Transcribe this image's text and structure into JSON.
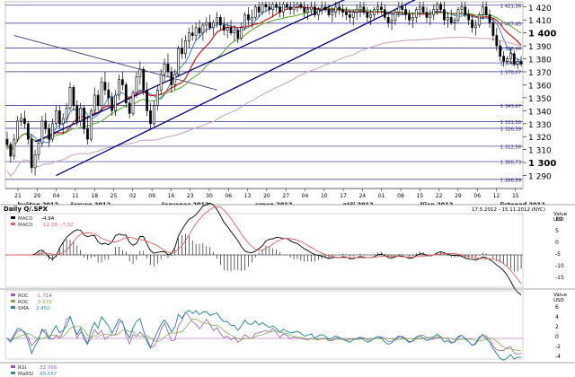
{
  "chart_data": [
    {
      "type": "candlestick",
      "title": "",
      "y_axis": {
        "ylim": [
          1280,
          1424
        ],
        "ticks": [
          {
            "v": 1290,
            "label": "1 290",
            "bold": false
          },
          {
            "v": 1300,
            "label": "1 300",
            "bold": true
          },
          {
            "v": 1310,
            "label": "1 310",
            "bold": false
          },
          {
            "v": 1320,
            "label": "1 320",
            "bold": false
          },
          {
            "v": 1330,
            "label": "1 330",
            "bold": false
          },
          {
            "v": 1340,
            "label": "1 340",
            "bold": false
          },
          {
            "v": 1350,
            "label": "1 350",
            "bold": false
          },
          {
            "v": 1360,
            "label": "1 360",
            "bold": false
          },
          {
            "v": 1370,
            "label": "1 370",
            "bold": false
          },
          {
            "v": 1380,
            "label": "1 380",
            "bold": false
          },
          {
            "v": 1390,
            "label": "1 390",
            "bold": false
          },
          {
            "v": 1400,
            "label": "1 400",
            "bold": true
          },
          {
            "v": 1410,
            "label": "1 410",
            "bold": false
          },
          {
            "v": 1420,
            "label": "1 420",
            "bold": false
          }
        ]
      },
      "levels": [
        {
          "v": 1421.36,
          "label": "1 421,36"
        },
        {
          "v": 1407.45,
          "label": "1 407,45"
        },
        {
          "v": 1388.44,
          "label": "1 388,44"
        },
        {
          "v": 1376.87,
          "label": "1 376,87"
        },
        {
          "v": 1370.07,
          "label": "1 370,07"
        },
        {
          "v": 1343.97,
          "label": "1 343,97"
        },
        {
          "v": 1331.58,
          "label": "1 331,58"
        },
        {
          "v": 1326.39,
          "label": "1 326,39"
        },
        {
          "v": 1312.58,
          "label": "1 312,58"
        },
        {
          "v": 1300.73,
          "label": "1 300,73"
        },
        {
          "v": 1286.99,
          "label": "1 286,99"
        }
      ],
      "x_day_labels": [
        "21",
        "29",
        "04",
        "11",
        "18",
        "25",
        "02",
        "09",
        "16",
        "23",
        "30",
        "06",
        "13",
        "20",
        "27",
        "04",
        "10",
        "17",
        "24",
        "01",
        "08",
        "15",
        "22",
        "29",
        "06",
        "12",
        "15"
      ],
      "x_month_labels": [
        {
          "label": "květen 2012",
          "day": 3
        },
        {
          "label": "červen 2012",
          "day": 18
        },
        {
          "label": "červenec 2012",
          "day": 44
        },
        {
          "label": "srpen 2012",
          "day": 71
        },
        {
          "label": "září 2012",
          "day": 96
        },
        {
          "label": "říjen 2012",
          "day": 118
        },
        {
          "label": "listopad 2012",
          "day": 141
        }
      ],
      "days": 148,
      "candles": [
        [
          1318,
          1324,
          1310,
          1314
        ],
        [
          1314,
          1316,
          1300,
          1305
        ],
        [
          1305,
          1322,
          1302,
          1318
        ],
        [
          1318,
          1336,
          1316,
          1332
        ],
        [
          1332,
          1338,
          1328,
          1334
        ],
        [
          1334,
          1340,
          1326,
          1330
        ],
        [
          1330,
          1332,
          1314,
          1318
        ],
        [
          1318,
          1322,
          1292,
          1296
        ],
        [
          1296,
          1310,
          1290,
          1306
        ],
        [
          1306,
          1318,
          1302,
          1315
        ],
        [
          1315,
          1336,
          1312,
          1332
        ],
        [
          1332,
          1338,
          1322,
          1326
        ],
        [
          1326,
          1330,
          1312,
          1318
        ],
        [
          1318,
          1334,
          1316,
          1330
        ],
        [
          1330,
          1344,
          1328,
          1340
        ],
        [
          1340,
          1344,
          1326,
          1330
        ],
        [
          1330,
          1338,
          1322,
          1334
        ],
        [
          1334,
          1346,
          1330,
          1342
        ],
        [
          1342,
          1362,
          1340,
          1358
        ],
        [
          1358,
          1360,
          1340,
          1344
        ],
        [
          1344,
          1348,
          1328,
          1332
        ],
        [
          1332,
          1346,
          1328,
          1342
        ],
        [
          1342,
          1344,
          1322,
          1326
        ],
        [
          1326,
          1336,
          1314,
          1318
        ],
        [
          1318,
          1342,
          1316,
          1340
        ],
        [
          1340,
          1358,
          1336,
          1352
        ],
        [
          1352,
          1356,
          1340,
          1344
        ],
        [
          1344,
          1366,
          1340,
          1362
        ],
        [
          1362,
          1370,
          1352,
          1356
        ],
        [
          1356,
          1362,
          1344,
          1350
        ],
        [
          1350,
          1354,
          1336,
          1340
        ],
        [
          1340,
          1356,
          1336,
          1352
        ],
        [
          1352,
          1368,
          1348,
          1364
        ],
        [
          1364,
          1370,
          1356,
          1360
        ],
        [
          1360,
          1362,
          1342,
          1346
        ],
        [
          1346,
          1350,
          1334,
          1338
        ],
        [
          1338,
          1356,
          1336,
          1354
        ],
        [
          1354,
          1370,
          1350,
          1366
        ],
        [
          1366,
          1378,
          1360,
          1372
        ],
        [
          1372,
          1374,
          1352,
          1356
        ],
        [
          1356,
          1362,
          1336,
          1340
        ],
        [
          1340,
          1346,
          1326,
          1330
        ],
        [
          1330,
          1348,
          1328,
          1344
        ],
        [
          1344,
          1360,
          1340,
          1356
        ],
        [
          1356,
          1372,
          1352,
          1368
        ],
        [
          1368,
          1380,
          1362,
          1376
        ],
        [
          1376,
          1384,
          1366,
          1370
        ],
        [
          1370,
          1374,
          1354,
          1360
        ],
        [
          1360,
          1372,
          1356,
          1368
        ],
        [
          1368,
          1390,
          1366,
          1388
        ],
        [
          1388,
          1396,
          1380,
          1384
        ],
        [
          1384,
          1398,
          1380,
          1394
        ],
        [
          1394,
          1404,
          1388,
          1400
        ],
        [
          1400,
          1406,
          1394,
          1398
        ],
        [
          1398,
          1408,
          1394,
          1404
        ],
        [
          1404,
          1410,
          1396,
          1400
        ],
        [
          1400,
          1408,
          1394,
          1406
        ],
        [
          1406,
          1412,
          1400,
          1408
        ],
        [
          1408,
          1414,
          1402,
          1404
        ],
        [
          1404,
          1410,
          1398,
          1408
        ],
        [
          1408,
          1416,
          1404,
          1412
        ],
        [
          1412,
          1414,
          1402,
          1406
        ],
        [
          1406,
          1412,
          1398,
          1402
        ],
        [
          1402,
          1408,
          1396,
          1404
        ],
        [
          1404,
          1410,
          1398,
          1400
        ],
        [
          1400,
          1406,
          1394,
          1402
        ],
        [
          1402,
          1404,
          1392,
          1396
        ],
        [
          1396,
          1408,
          1394,
          1404
        ],
        [
          1404,
          1416,
          1402,
          1414
        ],
        [
          1414,
          1420,
          1406,
          1410
        ],
        [
          1410,
          1418,
          1404,
          1412
        ],
        [
          1412,
          1422,
          1410,
          1420
        ],
        [
          1420,
          1424,
          1412,
          1416
        ],
        [
          1416,
          1424,
          1414,
          1422
        ],
        [
          1422,
          1424,
          1416,
          1420
        ],
        [
          1420,
          1424,
          1414,
          1418
        ],
        [
          1418,
          1424,
          1412,
          1422
        ],
        [
          1422,
          1424,
          1416,
          1420
        ],
        [
          1420,
          1424,
          1412,
          1416
        ],
        [
          1416,
          1424,
          1412,
          1422
        ],
        [
          1422,
          1424,
          1418,
          1420
        ],
        [
          1420,
          1424,
          1414,
          1418
        ],
        [
          1418,
          1424,
          1414,
          1420
        ],
        [
          1420,
          1424,
          1416,
          1422
        ],
        [
          1422,
          1424,
          1418,
          1420
        ],
        [
          1420,
          1424,
          1412,
          1416
        ],
        [
          1416,
          1422,
          1410,
          1418
        ],
        [
          1418,
          1424,
          1414,
          1420
        ],
        [
          1420,
          1424,
          1412,
          1414
        ],
        [
          1414,
          1420,
          1410,
          1418
        ],
        [
          1418,
          1424,
          1414,
          1420
        ],
        [
          1420,
          1424,
          1416,
          1418
        ],
        [
          1418,
          1422,
          1412,
          1414
        ],
        [
          1414,
          1420,
          1408,
          1416
        ],
        [
          1416,
          1424,
          1412,
          1420
        ],
        [
          1420,
          1424,
          1414,
          1418
        ],
        [
          1418,
          1422,
          1412,
          1416
        ],
        [
          1416,
          1420,
          1410,
          1414
        ],
        [
          1414,
          1418,
          1408,
          1412
        ],
        [
          1412,
          1418,
          1406,
          1416
        ],
        [
          1416,
          1422,
          1410,
          1418
        ],
        [
          1418,
          1424,
          1412,
          1420
        ],
        [
          1420,
          1424,
          1414,
          1416
        ],
        [
          1416,
          1420,
          1408,
          1412
        ],
        [
          1412,
          1418,
          1406,
          1414
        ],
        [
          1414,
          1420,
          1410,
          1418
        ],
        [
          1418,
          1424,
          1414,
          1420
        ],
        [
          1420,
          1424,
          1414,
          1418
        ],
        [
          1418,
          1422,
          1410,
          1412
        ],
        [
          1412,
          1416,
          1404,
          1408
        ],
        [
          1408,
          1414,
          1402,
          1410
        ],
        [
          1410,
          1418,
          1406,
          1416
        ],
        [
          1416,
          1424,
          1412,
          1420
        ],
        [
          1420,
          1424,
          1414,
          1418
        ],
        [
          1418,
          1422,
          1410,
          1414
        ],
        [
          1414,
          1418,
          1406,
          1410
        ],
        [
          1410,
          1416,
          1404,
          1412
        ],
        [
          1412,
          1420,
          1408,
          1418
        ],
        [
          1418,
          1424,
          1412,
          1420
        ],
        [
          1420,
          1424,
          1414,
          1416
        ],
        [
          1416,
          1420,
          1408,
          1412
        ],
        [
          1412,
          1418,
          1406,
          1414
        ],
        [
          1414,
          1422,
          1410,
          1418
        ],
        [
          1418,
          1424,
          1414,
          1422
        ],
        [
          1422,
          1424,
          1416,
          1418
        ],
        [
          1418,
          1424,
          1406,
          1410
        ],
        [
          1410,
          1416,
          1404,
          1412
        ],
        [
          1412,
          1418,
          1406,
          1408
        ],
        [
          1408,
          1412,
          1402,
          1410
        ],
        [
          1410,
          1420,
          1408,
          1418
        ],
        [
          1418,
          1424,
          1414,
          1420
        ],
        [
          1420,
          1424,
          1412,
          1414
        ],
        [
          1414,
          1418,
          1406,
          1410
        ],
        [
          1410,
          1414,
          1400,
          1404
        ],
        [
          1404,
          1410,
          1398,
          1406
        ],
        [
          1406,
          1416,
          1404,
          1414
        ],
        [
          1414,
          1424,
          1410,
          1420
        ],
        [
          1420,
          1424,
          1412,
          1414
        ],
        [
          1414,
          1418,
          1404,
          1408
        ],
        [
          1408,
          1412,
          1394,
          1398
        ],
        [
          1398,
          1404,
          1386,
          1390
        ],
        [
          1390,
          1394,
          1378,
          1382
        ],
        [
          1382,
          1386,
          1374,
          1378
        ],
        [
          1378,
          1382,
          1376,
          1380
        ],
        [
          1380,
          1388,
          1376,
          1384
        ],
        [
          1384,
          1386,
          1374,
          1376
        ],
        [
          1376,
          1380,
          1372,
          1378
        ],
        [
          1378,
          1382,
          1374,
          1376
        ]
      ]
    },
    {
      "type": "line",
      "title": "Daily Q/.SPX",
      "date_range": "17.5.2012 - 15.11.2012 (NYC)",
      "value_label": "Value\nUSD",
      "series": [
        {
          "name": "MACD",
          "value": "-4.94",
          "color": "#000000"
        },
        {
          "name": "MACD",
          "value": "-12.28; -7.32",
          "color": "#e06060"
        }
      ],
      "yticks": [
        "10",
        "5",
        "0",
        "-5",
        "-10",
        "-15"
      ]
    },
    {
      "type": "line",
      "series": [
        {
          "name": "ROC",
          "value": "-1.714",
          "color": "#9b59b6"
        },
        {
          "name": "ROC",
          "value": "-3.679",
          "color": "#7fb04a"
        },
        {
          "name": "SMA",
          "value": "2.450",
          "color": "#2e8b9a"
        }
      ],
      "value_label": "Value\nUSD",
      "yticks": [
        "6",
        "4",
        "2",
        "0",
        "-2",
        "-4"
      ]
    },
    {
      "type": "line",
      "series": [
        {
          "name": "RSI",
          "value": "33.768",
          "color": "#9b59b6"
        },
        {
          "name": "MaRSI",
          "value": "40.557",
          "color": "#2e8b9a"
        }
      ]
    }
  ]
}
